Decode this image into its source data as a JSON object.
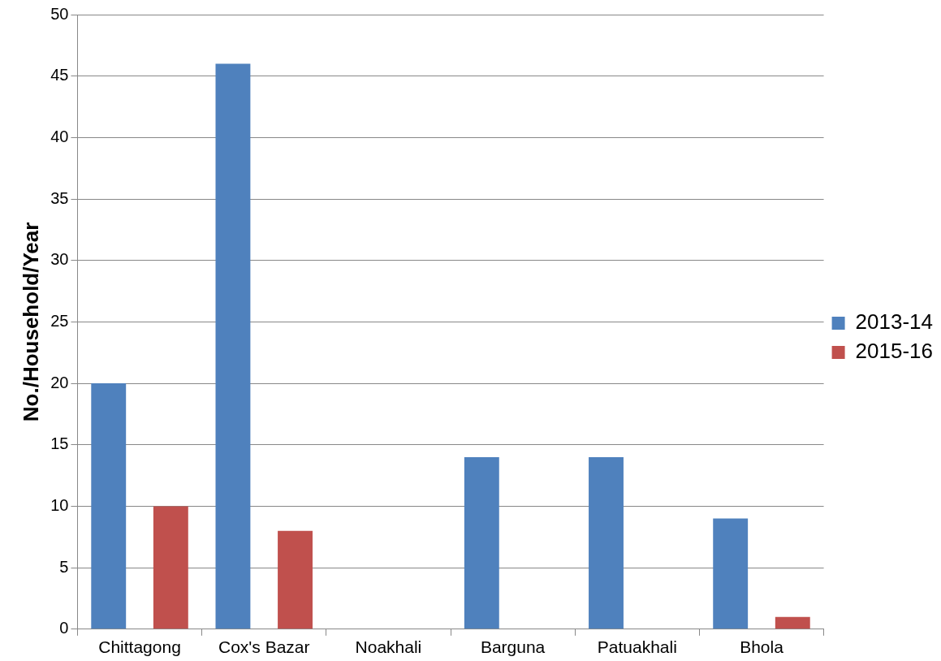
{
  "chart_data": {
    "type": "bar",
    "ylabel": "No./Household/Year",
    "categories": [
      "Chittagong",
      "Cox's Bazar",
      "Noakhali",
      "Barguna",
      "Patuakhali",
      "Bhola"
    ],
    "series": [
      {
        "name": "2013-14",
        "color": "#4f81bd",
        "values": [
          20,
          46,
          0,
          14,
          14,
          9
        ]
      },
      {
        "name": "2015-16",
        "color": "#c0504d",
        "values": [
          10,
          8,
          0,
          0,
          0,
          1
        ]
      }
    ],
    "ylim": [
      0,
      50
    ],
    "yticks": [
      0,
      5,
      10,
      15,
      20,
      25,
      30,
      35,
      40,
      45,
      50
    ],
    "grid": "y",
    "legend": "right"
  }
}
